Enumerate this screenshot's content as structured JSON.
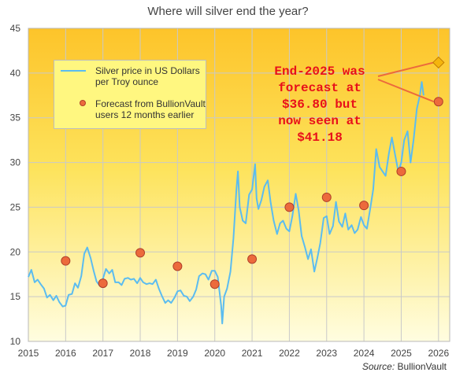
{
  "chart_data": {
    "type": "line",
    "title": "Where will silver end the year?",
    "source_label": "Source:",
    "source_name": "BullionVault",
    "x_ticks": [
      "2015",
      "2016",
      "2017",
      "2018",
      "2019",
      "2020",
      "2021",
      "2022",
      "2023",
      "2024",
      "2025",
      "2026"
    ],
    "y_ticks": [
      10,
      15,
      20,
      25,
      30,
      35,
      40,
      45
    ],
    "xlim": [
      2015,
      2026.3
    ],
    "ylim": [
      10,
      45
    ],
    "grid": true,
    "legend_position": "top-left",
    "legend": [
      {
        "label": "Silver price in US Dollars per Troy ounce",
        "marker": "line",
        "color": "#5bbcf0"
      },
      {
        "label": "Forecast from BullionVault users 12 months earlier",
        "marker": "dot",
        "color": "#ec6a3c"
      }
    ],
    "series": [
      {
        "name": "Silver price in US Dollars per Troy ounce",
        "color": "#5bbcf0",
        "points": [
          [
            2015.0,
            17.2
          ],
          [
            2015.08,
            18.0
          ],
          [
            2015.17,
            16.6
          ],
          [
            2015.25,
            16.9
          ],
          [
            2015.33,
            16.4
          ],
          [
            2015.42,
            15.9
          ],
          [
            2015.5,
            14.9
          ],
          [
            2015.58,
            15.2
          ],
          [
            2015.67,
            14.6
          ],
          [
            2015.75,
            15.1
          ],
          [
            2015.83,
            14.4
          ],
          [
            2015.92,
            13.9
          ],
          [
            2016.0,
            14.0
          ],
          [
            2016.08,
            15.2
          ],
          [
            2016.17,
            15.3
          ],
          [
            2016.25,
            16.5
          ],
          [
            2016.33,
            16.0
          ],
          [
            2016.42,
            17.3
          ],
          [
            2016.5,
            19.8
          ],
          [
            2016.58,
            20.5
          ],
          [
            2016.67,
            19.3
          ],
          [
            2016.75,
            17.9
          ],
          [
            2016.83,
            16.7
          ],
          [
            2016.92,
            16.2
          ],
          [
            2017.0,
            17.0
          ],
          [
            2017.08,
            18.1
          ],
          [
            2017.17,
            17.6
          ],
          [
            2017.25,
            18.0
          ],
          [
            2017.33,
            16.6
          ],
          [
            2017.42,
            16.6
          ],
          [
            2017.5,
            16.3
          ],
          [
            2017.58,
            17.0
          ],
          [
            2017.67,
            17.1
          ],
          [
            2017.75,
            16.9
          ],
          [
            2017.83,
            17.0
          ],
          [
            2017.92,
            16.5
          ],
          [
            2018.0,
            17.1
          ],
          [
            2018.08,
            16.6
          ],
          [
            2018.17,
            16.4
          ],
          [
            2018.25,
            16.5
          ],
          [
            2018.33,
            16.4
          ],
          [
            2018.42,
            16.9
          ],
          [
            2018.5,
            15.9
          ],
          [
            2018.58,
            15.1
          ],
          [
            2018.67,
            14.3
          ],
          [
            2018.75,
            14.6
          ],
          [
            2018.83,
            14.3
          ],
          [
            2018.92,
            14.9
          ],
          [
            2019.0,
            15.6
          ],
          [
            2019.08,
            15.7
          ],
          [
            2019.17,
            15.1
          ],
          [
            2019.25,
            15.0
          ],
          [
            2019.33,
            14.5
          ],
          [
            2019.42,
            15.0
          ],
          [
            2019.5,
            15.8
          ],
          [
            2019.58,
            17.3
          ],
          [
            2019.67,
            17.6
          ],
          [
            2019.75,
            17.5
          ],
          [
            2019.83,
            16.9
          ],
          [
            2019.92,
            17.9
          ],
          [
            2020.0,
            17.9
          ],
          [
            2020.08,
            17.2
          ],
          [
            2020.17,
            14.0
          ],
          [
            2020.2,
            12.0
          ],
          [
            2020.25,
            15.0
          ],
          [
            2020.33,
            15.9
          ],
          [
            2020.42,
            17.8
          ],
          [
            2020.5,
            21.5
          ],
          [
            2020.58,
            27.0
          ],
          [
            2020.62,
            29.0
          ],
          [
            2020.67,
            25.0
          ],
          [
            2020.75,
            23.5
          ],
          [
            2020.83,
            23.2
          ],
          [
            2020.92,
            26.4
          ],
          [
            2021.0,
            27.0
          ],
          [
            2021.08,
            29.8
          ],
          [
            2021.12,
            26.0
          ],
          [
            2021.17,
            24.8
          ],
          [
            2021.25,
            25.8
          ],
          [
            2021.33,
            27.3
          ],
          [
            2021.42,
            28.0
          ],
          [
            2021.5,
            25.5
          ],
          [
            2021.58,
            23.5
          ],
          [
            2021.67,
            22.0
          ],
          [
            2021.75,
            23.2
          ],
          [
            2021.83,
            23.5
          ],
          [
            2021.92,
            22.6
          ],
          [
            2022.0,
            22.3
          ],
          [
            2022.08,
            24.0
          ],
          [
            2022.17,
            26.5
          ],
          [
            2022.25,
            24.6
          ],
          [
            2022.33,
            21.8
          ],
          [
            2022.42,
            20.5
          ],
          [
            2022.5,
            19.2
          ],
          [
            2022.58,
            20.3
          ],
          [
            2022.67,
            17.8
          ],
          [
            2022.75,
            19.3
          ],
          [
            2022.83,
            21.0
          ],
          [
            2022.92,
            23.8
          ],
          [
            2023.0,
            24.0
          ],
          [
            2023.08,
            22.0
          ],
          [
            2023.17,
            22.9
          ],
          [
            2023.25,
            25.6
          ],
          [
            2023.33,
            23.4
          ],
          [
            2023.42,
            22.8
          ],
          [
            2023.5,
            24.3
          ],
          [
            2023.58,
            22.5
          ],
          [
            2023.67,
            23.0
          ],
          [
            2023.75,
            22.1
          ],
          [
            2023.83,
            22.5
          ],
          [
            2023.92,
            23.9
          ],
          [
            2024.0,
            23.0
          ],
          [
            2024.08,
            22.6
          ],
          [
            2024.17,
            24.9
          ],
          [
            2024.25,
            27.0
          ],
          [
            2024.33,
            31.5
          ],
          [
            2024.42,
            29.5
          ],
          [
            2024.5,
            29.0
          ],
          [
            2024.58,
            28.5
          ],
          [
            2024.67,
            31.0
          ],
          [
            2024.75,
            32.8
          ],
          [
            2024.83,
            31.0
          ],
          [
            2024.92,
            29.0
          ],
          [
            2025.0,
            30.0
          ],
          [
            2025.08,
            32.5
          ],
          [
            2025.17,
            33.5
          ],
          [
            2025.25,
            30.0
          ],
          [
            2025.33,
            32.5
          ],
          [
            2025.42,
            36.0
          ],
          [
            2025.5,
            37.5
          ],
          [
            2025.55,
            39.0
          ],
          [
            2025.6,
            37.5
          ]
        ]
      },
      {
        "name": "Forecast from BullionVault users 12 months earlier",
        "color": "#ec6a3c",
        "points": [
          [
            2016.0,
            19.0
          ],
          [
            2017.0,
            16.5
          ],
          [
            2018.0,
            19.9
          ],
          [
            2019.0,
            18.4
          ],
          [
            2020.0,
            16.4
          ],
          [
            2021.0,
            19.2
          ],
          [
            2022.0,
            25.0
          ],
          [
            2023.0,
            26.1
          ],
          [
            2024.0,
            25.2
          ],
          [
            2025.0,
            29.0
          ],
          [
            2026.0,
            36.8
          ]
        ]
      }
    ],
    "highlight_point": {
      "x": 2026.0,
      "y": 41.18,
      "marker": "diamond",
      "color": "#f5b50d"
    },
    "annotation": {
      "text": "End-2025 was\nforecast at\n$36.80 but\nnow seen at\n$41.18",
      "color": "#e8101a",
      "leader_color": "#ec6a3c"
    }
  }
}
